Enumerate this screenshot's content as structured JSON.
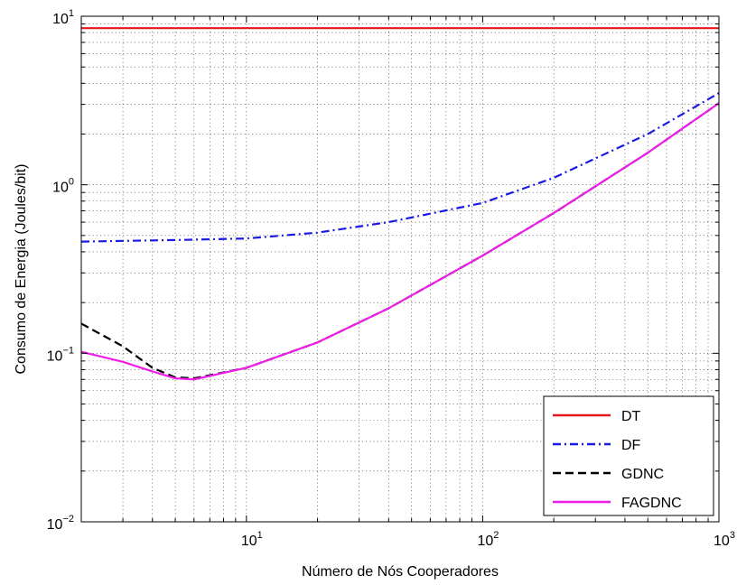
{
  "chart_data": {
    "type": "line",
    "xlabel": "Número de Nós Cooperadores",
    "ylabel": "Consumo de Energia (Joules/bit)",
    "xscale": "log",
    "yscale": "log",
    "xlim": [
      2,
      1000
    ],
    "ylim": [
      0.01,
      10
    ],
    "grid": "on (major and minor, dotted)",
    "legend_position": "bottom-right",
    "x_ticks": [
      {
        "value": 10,
        "base": "10",
        "exp": "1"
      },
      {
        "value": 100,
        "base": "10",
        "exp": "2"
      },
      {
        "value": 1000,
        "base": "10",
        "exp": "3"
      }
    ],
    "y_ticks": [
      {
        "value": 0.01,
        "base": "10",
        "exp": "−2"
      },
      {
        "value": 0.1,
        "base": "10",
        "exp": "−1"
      },
      {
        "value": 1,
        "base": "10",
        "exp": "0"
      },
      {
        "value": 10,
        "base": "10",
        "exp": "1"
      }
    ],
    "series": [
      {
        "name": "DT",
        "color": "#e8161b",
        "dash": "solid",
        "x": [
          2,
          1000
        ],
        "y": [
          8.5,
          8.5
        ]
      },
      {
        "name": "DF",
        "color": "#1a1ae6",
        "dash": "dashdot",
        "x": [
          2,
          5,
          10,
          20,
          40,
          100,
          200,
          500,
          1000
        ],
        "y": [
          0.46,
          0.47,
          0.48,
          0.52,
          0.6,
          0.78,
          1.1,
          2.0,
          3.5
        ]
      },
      {
        "name": "GDNC",
        "color": "#000000",
        "dash": "dashed",
        "x": [
          2,
          3,
          4,
          5,
          6,
          10,
          20,
          40,
          100,
          200,
          500,
          1000
        ],
        "y": [
          0.15,
          0.11,
          0.082,
          0.072,
          0.071,
          0.082,
          0.116,
          0.185,
          0.38,
          0.68,
          1.55,
          3.05
        ]
      },
      {
        "name": "FAGDNC",
        "color": "#ee1ee8",
        "dash": "solid",
        "x": [
          2,
          3,
          4,
          5,
          6,
          10,
          20,
          40,
          100,
          200,
          500,
          1000
        ],
        "y": [
          0.102,
          0.089,
          0.078,
          0.071,
          0.07,
          0.082,
          0.116,
          0.185,
          0.38,
          0.68,
          1.55,
          3.05
        ]
      }
    ]
  }
}
